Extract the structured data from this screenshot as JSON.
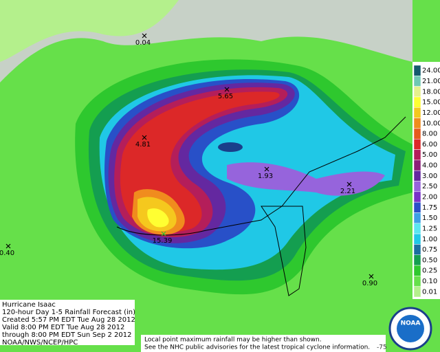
{
  "title_block": {
    "lines": [
      "Hurricane Isaac",
      "120-hour Day 1-5 Rainfall Forecast (in)",
      "Created 5:57 PM EDT Tue Aug 28 2012",
      "Valid 8:00 PM EDT Tue Aug 28 2012",
      "through 8:00 PM EDT Sun Sep 2 2012",
      "NOAA/NWS/NCEP/HPC"
    ]
  },
  "note": [
    "Local point maximum rainfall may be higher than shown.",
    "See the NHC public advisories for the latest tropical cyclone information."
  ],
  "legend": {
    "items": [
      {
        "label": "24.00",
        "color": "#145a6e"
      },
      {
        "label": "21.00",
        "color": "#6ec8b4"
      },
      {
        "label": "18.00",
        "color": "#e6f08c"
      },
      {
        "label": "15.00",
        "color": "#ffff32"
      },
      {
        "label": "12.00",
        "color": "#f5c81e"
      },
      {
        "label": "10.00",
        "color": "#f08c1e"
      },
      {
        "label": "8.00",
        "color": "#e65a1e"
      },
      {
        "label": "6.00",
        "color": "#dc2828"
      },
      {
        "label": "5.00",
        "color": "#b41e5a"
      },
      {
        "label": "4.00",
        "color": "#8c1e78"
      },
      {
        "label": "3.00",
        "color": "#6428a0"
      },
      {
        "label": "2.50",
        "color": "#9664dc"
      },
      {
        "label": "2.00",
        "color": "#7832c8"
      },
      {
        "label": "1.75",
        "color": "#2850c8"
      },
      {
        "label": "1.50",
        "color": "#3ca0e6"
      },
      {
        "label": "1.25",
        "color": "#5ae6f0"
      },
      {
        "label": "1.00",
        "color": "#20c8e6"
      },
      {
        "label": "0.75",
        "color": "#1a6ea0"
      },
      {
        "label": "0.50",
        "color": "#149e50"
      },
      {
        "label": "0.25",
        "color": "#2ec82e"
      },
      {
        "label": "0.10",
        "color": "#66e04a"
      },
      {
        "label": "0.01",
        "color": "#b4f08c"
      }
    ]
  },
  "points": [
    {
      "label": "0.04"
    },
    {
      "label": "5.65"
    },
    {
      "label": "4.81"
    },
    {
      "label": "1.93"
    },
    {
      "label": "2.21"
    },
    {
      "label": "15.39"
    },
    {
      "label": "0.40"
    },
    {
      "label": "0.90"
    }
  ],
  "logo": "NOAA",
  "coord_label": "-75"
}
